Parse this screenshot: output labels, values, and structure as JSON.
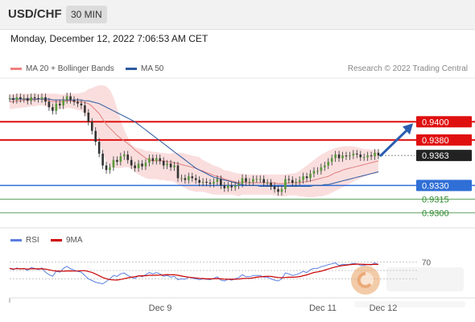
{
  "header": {
    "symbol": "USD/CHF",
    "interval": "30 MIN"
  },
  "timestamp": "Monday, December 12, 2022 7:06:53 AM CET",
  "legend": {
    "ma20_label": "MA 20 + Bollinger Bands",
    "ma20_color": "#f08080",
    "ma50_label": "MA 50",
    "ma50_color": "#2c5aa0"
  },
  "credit": "Research © 2022 Trading Central",
  "rsi_legend": {
    "rsi_label": "RSI",
    "rsi_color": "#5b7fe0",
    "ma_label": "9MA",
    "ma_color": "#cc0000"
  },
  "chart_data": {
    "type": "candlestick",
    "price_range": [
      0.9287,
      0.9448
    ],
    "levels": [
      {
        "value": 0.94,
        "label": "0.9400",
        "style": "resistance"
      },
      {
        "value": 0.938,
        "label": "0.9380",
        "style": "resistance"
      },
      {
        "value": 0.9363,
        "label": "0.9363",
        "style": "current"
      },
      {
        "value": 0.933,
        "label": "0.9330",
        "style": "pivot"
      },
      {
        "value": 0.9315,
        "label": "0.9315",
        "style": "support"
      },
      {
        "value": 0.93,
        "label": "0.9300",
        "style": "support"
      }
    ],
    "x_labels": [
      "Dec 9",
      "Dec 11",
      "Dec 12"
    ],
    "closes": [
      0.9426,
      0.9424,
      0.9427,
      0.9425,
      0.9426,
      0.9423,
      0.9427,
      0.9426,
      0.9425,
      0.9427,
      0.9422,
      0.9416,
      0.9412,
      0.942,
      0.9418,
      0.9424,
      0.9428,
      0.9424,
      0.9422,
      0.942,
      0.9418,
      0.941,
      0.94,
      0.939,
      0.9378,
      0.9365,
      0.9352,
      0.9347,
      0.935,
      0.9358,
      0.9356,
      0.9362,
      0.9364,
      0.9358,
      0.9352,
      0.9349,
      0.9354,
      0.9351,
      0.9355,
      0.936,
      0.9357,
      0.936,
      0.9357,
      0.9352,
      0.9354,
      0.935,
      0.9352,
      0.9338,
      0.9338,
      0.9336,
      0.934,
      0.9338,
      0.9336,
      0.9333,
      0.9334,
      0.9333,
      0.9332,
      0.9334,
      0.9337,
      0.933,
      0.9327,
      0.933,
      0.9328,
      0.933,
      0.9332,
      0.9338,
      0.9334,
      0.9334,
      0.9337,
      0.9337,
      0.9337,
      0.9333,
      0.9333,
      0.9329,
      0.9326,
      0.9323,
      0.9326,
      0.9337,
      0.9336,
      0.9333,
      0.9334,
      0.9336,
      0.934,
      0.9338,
      0.9343,
      0.9346,
      0.9346,
      0.935,
      0.9352,
      0.9356,
      0.936,
      0.9364,
      0.936,
      0.9363,
      0.9362,
      0.9363,
      0.9365,
      0.9364,
      0.9361,
      0.9361,
      0.9363,
      0.9362,
      0.9366,
      0.9363
    ],
    "ma20": [
      0.9422,
      0.9422,
      0.9423,
      0.9423,
      0.9424,
      0.9424,
      0.9424,
      0.9424,
      0.9425,
      0.9425,
      0.9424,
      0.9423,
      0.9422,
      0.9422,
      0.9422,
      0.9422,
      0.9423,
      0.9423,
      0.9422,
      0.9422,
      0.9422,
      0.9421,
      0.942,
      0.9417,
      0.9413,
      0.9409,
      0.9403,
      0.9397,
      0.9393,
      0.9389,
      0.9385,
      0.9382,
      0.9379,
      0.9376,
      0.9373,
      0.9369,
      0.9366,
      0.9363,
      0.936,
      0.9358,
      0.9357,
      0.9357,
      0.9357,
      0.9357,
      0.9356,
      0.9356,
      0.9355,
      0.9354,
      0.9353,
      0.9352,
      0.9351,
      0.935,
      0.9349,
      0.9347,
      0.9346,
      0.9344,
      0.9343,
      0.9341,
      0.934,
      0.9339,
      0.9337,
      0.9336,
      0.9335,
      0.9334,
      0.9333,
      0.9334,
      0.9333,
      0.9333,
      0.9333,
      0.9333,
      0.9333,
      0.9333,
      0.9333,
      0.9333,
      0.9333,
      0.9332,
      0.9332,
      0.9332,
      0.9333,
      0.9333,
      0.9333,
      0.9333,
      0.9334,
      0.9334,
      0.9335,
      0.9336,
      0.9337,
      0.9338,
      0.9339,
      0.934,
      0.9342,
      0.9344,
      0.9345,
      0.9347,
      0.9348,
      0.9349,
      0.935,
      0.9351,
      0.9352,
      0.9353,
      0.9354,
      0.9355,
      0.9356,
      0.9357
    ],
    "bb_upper": [
      0.943,
      0.943,
      0.9431,
      0.9431,
      0.9431,
      0.9431,
      0.9431,
      0.9431,
      0.9431,
      0.9431,
      0.9431,
      0.9431,
      0.9431,
      0.9431,
      0.943,
      0.943,
      0.9431,
      0.9431,
      0.9431,
      0.9431,
      0.9432,
      0.9433,
      0.9436,
      0.9437,
      0.9439,
      0.944,
      0.944,
      0.9439,
      0.9435,
      0.9427,
      0.9415,
      0.9402,
      0.9391,
      0.9383,
      0.9375,
      0.9372,
      0.9371,
      0.937,
      0.9368,
      0.9368,
      0.9367,
      0.9367,
      0.9366,
      0.9366,
      0.9365,
      0.9365,
      0.9366,
      0.9366,
      0.9366,
      0.9365,
      0.9364,
      0.9363,
      0.9362,
      0.9361,
      0.9358,
      0.9356,
      0.9354,
      0.9352,
      0.9351,
      0.9349,
      0.9347,
      0.9346,
      0.9345,
      0.9344,
      0.9343,
      0.9343,
      0.9342,
      0.9342,
      0.9342,
      0.9342,
      0.9342,
      0.9342,
      0.9342,
      0.9342,
      0.9342,
      0.9342,
      0.9342,
      0.9342,
      0.9343,
      0.9343,
      0.9344,
      0.9346,
      0.9349,
      0.9352,
      0.9355,
      0.9358,
      0.9361,
      0.9364,
      0.9366,
      0.9368,
      0.937,
      0.9371,
      0.9372,
      0.9373,
      0.9373,
      0.9373,
      0.9373,
      0.9372,
      0.9371,
      0.937,
      0.937,
      0.9369,
      0.9369,
      0.9369
    ],
    "bb_lower": [
      0.9414,
      0.9414,
      0.9415,
      0.9415,
      0.9416,
      0.9416,
      0.9417,
      0.9417,
      0.9418,
      0.9418,
      0.9417,
      0.9415,
      0.9413,
      0.9413,
      0.9414,
      0.9414,
      0.9415,
      0.9415,
      0.9414,
      0.9413,
      0.9412,
      0.9409,
      0.9404,
      0.9397,
      0.9388,
      0.9378,
      0.9366,
      0.9355,
      0.935,
      0.9349,
      0.9349,
      0.9349,
      0.935,
      0.935,
      0.9349,
      0.9345,
      0.9342,
      0.934,
      0.9338,
      0.9337,
      0.9337,
      0.9337,
      0.9336,
      0.9336,
      0.9335,
      0.9335,
      0.9334,
      0.9331,
      0.9329,
      0.9327,
      0.9325,
      0.9324,
      0.9323,
      0.9323,
      0.9323,
      0.9322,
      0.9321,
      0.932,
      0.932,
      0.932,
      0.932,
      0.932,
      0.932,
      0.9319,
      0.9318,
      0.932,
      0.932,
      0.932,
      0.932,
      0.932,
      0.932,
      0.932,
      0.932,
      0.932,
      0.9319,
      0.9318,
      0.9318,
      0.9318,
      0.9319,
      0.9319,
      0.9319,
      0.9318,
      0.9318,
      0.9317,
      0.9317,
      0.9317,
      0.9318,
      0.9318,
      0.9319,
      0.932,
      0.9322,
      0.9324,
      0.9326,
      0.9328,
      0.933,
      0.9332,
      0.9334,
      0.9336,
      0.9338,
      0.934,
      0.9341,
      0.9342,
      0.9343,
      0.9344
    ],
    "ma50": [
      0.9425,
      0.9425,
      0.9425,
      0.9425,
      0.9425,
      0.9425,
      0.9425,
      0.9425,
      0.9425,
      0.9425,
      0.9425,
      0.9425,
      0.9424,
      0.9424,
      0.9424,
      0.9424,
      0.9424,
      0.9424,
      0.9424,
      0.9424,
      0.9424,
      0.9423,
      0.9423,
      0.9422,
      0.9421,
      0.942,
      0.9418,
      0.9416,
      0.9414,
      0.9412,
      0.941,
      0.9408,
      0.9406,
      0.9404,
      0.9402,
      0.94,
      0.9397,
      0.9394,
      0.9391,
      0.9388,
      0.9385,
      0.9382,
      0.9379,
      0.9376,
      0.9373,
      0.937,
      0.9367,
      0.9364,
      0.9361,
      0.9358,
      0.9355,
      0.9352,
      0.9349,
      0.9347,
      0.9345,
      0.9343,
      0.9341,
      0.9339,
      0.9338,
      0.9337,
      0.9336,
      0.9335,
      0.9334,
      0.9333,
      0.9332,
      0.9331,
      0.933,
      0.933,
      0.933,
      0.933,
      0.9329,
      0.9329,
      0.9329,
      0.9329,
      0.9329,
      0.9329,
      0.9329,
      0.9329,
      0.9329,
      0.9329,
      0.9329,
      0.9329,
      0.9329,
      0.9329,
      0.9329,
      0.933,
      0.933,
      0.933,
      0.9331,
      0.9331,
      0.9332,
      0.9333,
      0.9334,
      0.9335,
      0.9336,
      0.9337,
      0.9338,
      0.9339,
      0.934,
      0.9341,
      0.9342,
      0.9343,
      0.9344,
      0.9345
    ],
    "rsi": {
      "level_label": "70",
      "values": [
        55,
        52,
        56,
        53,
        55,
        50,
        57,
        55,
        52,
        56,
        46,
        40,
        36,
        48,
        46,
        55,
        60,
        54,
        51,
        48,
        46,
        38,
        30,
        26,
        22,
        20,
        18,
        24,
        30,
        38,
        36,
        42,
        44,
        38,
        34,
        31,
        38,
        35,
        40,
        45,
        42,
        45,
        42,
        36,
        38,
        34,
        36,
        28,
        30,
        29,
        34,
        32,
        30,
        28,
        30,
        29,
        28,
        31,
        35,
        27,
        25,
        29,
        27,
        30,
        33,
        40,
        35,
        35,
        38,
        38,
        38,
        34,
        34,
        30,
        27,
        25,
        30,
        44,
        42,
        38,
        40,
        43,
        48,
        45,
        52,
        55,
        55,
        59,
        61,
        64,
        66,
        68,
        62,
        65,
        64,
        65,
        67,
        66,
        62,
        62,
        65,
        63,
        68,
        64
      ]
    }
  }
}
